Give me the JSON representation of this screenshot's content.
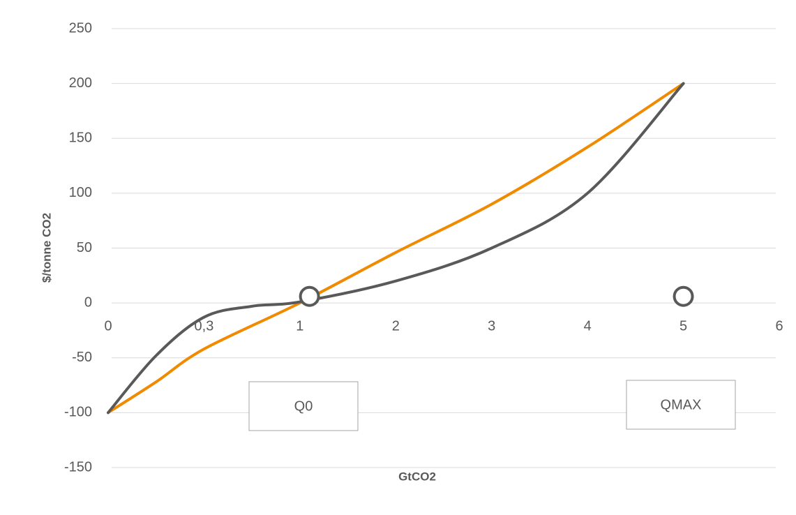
{
  "chart_data": {
    "type": "line",
    "x_label": "GtCO2",
    "y_label": "$/tonne CO2",
    "xlim": [
      0,
      7
    ],
    "xticks": [
      0,
      {
        "value": 1,
        "label": "0,3"
      },
      {
        "value": 2,
        "label": "1"
      },
      {
        "value": 3,
        "label": "2"
      },
      {
        "value": 4,
        "label": "3"
      },
      {
        "value": 5,
        "label": "4"
      },
      {
        "value": 6,
        "label": "5"
      },
      {
        "value": 7,
        "label": "6"
      }
    ],
    "ylim": [
      -150,
      250
    ],
    "yticks": [
      -150,
      -100,
      -50,
      0,
      50,
      100,
      150,
      200,
      250
    ],
    "grid": true,
    "series": [
      {
        "name": "Orange curve",
        "color": "#f08a00",
        "x": [
          0,
          0.5,
          1,
          2,
          3,
          4,
          5,
          6
        ],
        "values": [
          -100,
          -72,
          -42,
          0,
          46,
          90,
          142,
          200
        ]
      },
      {
        "name": "Gray curve",
        "color": "#595959",
        "x": [
          0,
          0.5,
          1,
          1.5,
          2,
          3,
          4,
          5,
          6
        ],
        "values": [
          -100,
          -48,
          -13,
          -3,
          1,
          20,
          50,
          100,
          200
        ]
      }
    ],
    "markers": {
      "x": [
        2.1,
        6
      ],
      "values": [
        6,
        6
      ]
    },
    "annotations": [
      "Q0",
      "QMAX"
    ]
  }
}
